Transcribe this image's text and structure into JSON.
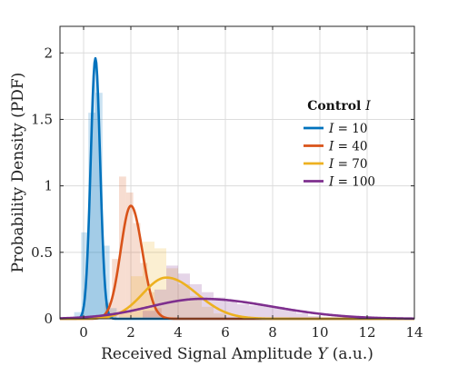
{
  "chart_data": {
    "type": "line",
    "xlabel": {
      "text": "Received Signal Amplitude ",
      "var": "Y",
      "unit": " (a.u.)"
    },
    "ylabel": "Probability Density (PDF)",
    "xlim": [
      -1,
      14
    ],
    "ylim": [
      0,
      2.2
    ],
    "xticks": [
      0,
      2,
      4,
      6,
      8,
      10,
      12,
      14
    ],
    "yticks": [
      0,
      0.5,
      1,
      1.5,
      2
    ],
    "ytick_labels": [
      "0",
      "0.5",
      "1",
      "1.5",
      "2"
    ],
    "grid": true,
    "legend": {
      "title_prefix": "Control ",
      "title_var": "I",
      "position": "right",
      "entries": [
        {
          "var": "I",
          "text": " = 10"
        },
        {
          "var": "I",
          "text": " = 40"
        },
        {
          "var": "I",
          "text": " = 70"
        },
        {
          "var": "I",
          "text": " = 100"
        }
      ]
    },
    "series": [
      {
        "color": "#0072BD",
        "peak_x": 0.5,
        "peak_y": 1.96,
        "sigma_left": 0.2,
        "sigma_right": 0.2
      },
      {
        "color": "#D95319",
        "peak_x": 2.0,
        "peak_y": 0.85,
        "sigma_left": 0.43,
        "sigma_right": 0.48
      },
      {
        "color": "#EDB120",
        "peak_x": 3.5,
        "peak_y": 0.31,
        "sigma_left": 1.0,
        "sigma_right": 1.3
      },
      {
        "color": "#7E2F8E",
        "peak_x": 5.0,
        "peak_y": 0.15,
        "sigma_left": 2.2,
        "sigma_right": 3.0
      }
    ],
    "histograms": [
      {
        "color": "#0072BD",
        "bins": [
          {
            "x0": -0.4,
            "x1": -0.1,
            "y": 0.05
          },
          {
            "x0": -0.1,
            "x1": 0.2,
            "y": 0.65
          },
          {
            "x0": 0.2,
            "x1": 0.5,
            "y": 1.55
          },
          {
            "x0": 0.5,
            "x1": 0.8,
            "y": 1.7
          },
          {
            "x0": 0.8,
            "x1": 1.1,
            "y": 0.55
          },
          {
            "x0": 1.1,
            "x1": 1.4,
            "y": 0.08
          }
        ]
      },
      {
        "color": "#D95319",
        "bins": [
          {
            "x0": 0.9,
            "x1": 1.2,
            "y": 0.12
          },
          {
            "x0": 1.2,
            "x1": 1.5,
            "y": 0.45
          },
          {
            "x0": 1.5,
            "x1": 1.8,
            "y": 1.07
          },
          {
            "x0": 1.8,
            "x1": 2.1,
            "y": 0.95
          },
          {
            "x0": 2.1,
            "x1": 2.4,
            "y": 0.72
          },
          {
            "x0": 2.4,
            "x1": 2.7,
            "y": 0.42
          },
          {
            "x0": 2.7,
            "x1": 3.0,
            "y": 0.2
          },
          {
            "x0": 3.0,
            "x1": 3.3,
            "y": 0.08
          }
        ]
      },
      {
        "color": "#EDB120",
        "bins": [
          {
            "x0": 1.5,
            "x1": 2.0,
            "y": 0.05
          },
          {
            "x0": 2.0,
            "x1": 2.5,
            "y": 0.32
          },
          {
            "x0": 2.5,
            "x1": 3.0,
            "y": 0.58
          },
          {
            "x0": 3.0,
            "x1": 3.5,
            "y": 0.53
          },
          {
            "x0": 3.5,
            "x1": 4.0,
            "y": 0.38
          },
          {
            "x0": 4.0,
            "x1": 4.5,
            "y": 0.26
          },
          {
            "x0": 4.5,
            "x1": 5.0,
            "y": 0.17
          },
          {
            "x0": 5.0,
            "x1": 5.5,
            "y": 0.09
          },
          {
            "x0": 5.5,
            "x1": 6.0,
            "y": 0.04
          }
        ]
      },
      {
        "color": "#7E2F8E",
        "bins": [
          {
            "x0": 2.5,
            "x1": 3.0,
            "y": 0.06
          },
          {
            "x0": 3.0,
            "x1": 3.5,
            "y": 0.22
          },
          {
            "x0": 3.5,
            "x1": 4.0,
            "y": 0.4
          },
          {
            "x0": 4.0,
            "x1": 4.5,
            "y": 0.34
          },
          {
            "x0": 4.5,
            "x1": 5.0,
            "y": 0.26
          },
          {
            "x0": 5.0,
            "x1": 5.5,
            "y": 0.2
          },
          {
            "x0": 5.5,
            "x1": 6.0,
            "y": 0.16
          },
          {
            "x0": 6.0,
            "x1": 6.5,
            "y": 0.13
          },
          {
            "x0": 6.5,
            "x1": 7.0,
            "y": 0.11
          },
          {
            "x0": 7.0,
            "x1": 7.5,
            "y": 0.1
          },
          {
            "x0": 7.5,
            "x1": 8.0,
            "y": 0.1
          },
          {
            "x0": 8.0,
            "x1": 8.5,
            "y": 0.09
          },
          {
            "x0": 8.5,
            "x1": 9.0,
            "y": 0.07
          },
          {
            "x0": 9.0,
            "x1": 9.5,
            "y": 0.04
          },
          {
            "x0": 9.5,
            "x1": 10.0,
            "y": 0.02
          }
        ]
      }
    ]
  }
}
